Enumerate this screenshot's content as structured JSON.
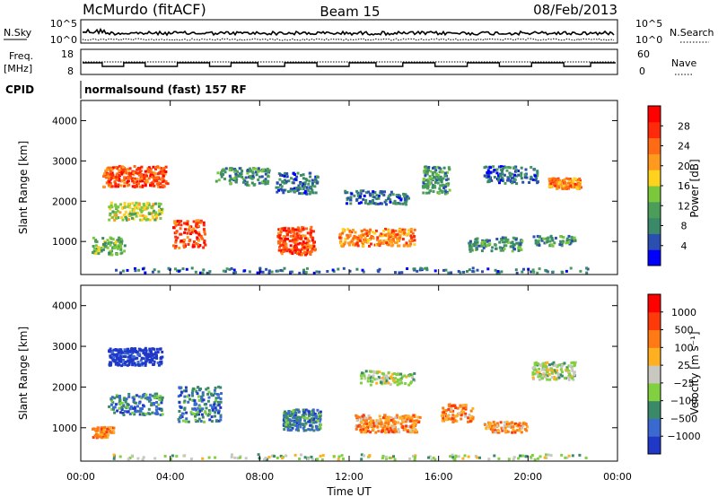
{
  "header": {
    "station": "McMurdo (fitACF)",
    "beam": "Beam 15",
    "date": "08/Feb/2013"
  },
  "noise_panel": {
    "left_label": "N.Sky",
    "right_label": "N.Search",
    "left_ticks": [
      "10^5",
      "10^0"
    ],
    "right_ticks": [
      "10^5",
      "10^0"
    ]
  },
  "freq_panel": {
    "left_label_line1": "Freq.",
    "left_label_line2": "[MHz]",
    "left_ticks": [
      "18",
      "8"
    ],
    "right_label": "Nave",
    "right_ticks": [
      "60",
      "0"
    ]
  },
  "cpid": {
    "label": "CPID",
    "value": "normalsound (fast) 157 RF"
  },
  "colors": {
    "power_scale": [
      "#0000ff",
      "#2b4fb0",
      "#3a8a6a",
      "#4a9e5a",
      "#7cc83c",
      "#ffd21e",
      "#ff9a1e",
      "#ff6a14",
      "#ff2a0a",
      "#ff0000"
    ],
    "velocity_scale": [
      "#2038c8",
      "#3a6ad0",
      "#3a8a6a",
      "#80d040",
      "#c8c8c0",
      "#ffb020",
      "#ff7a14",
      "#ff3a0a",
      "#ff0000"
    ]
  },
  "chart_data": [
    {
      "type": "heatmap",
      "name": "power",
      "ylabel": "Slant Range [km]",
      "yticks": [
        "1000",
        "2000",
        "3000",
        "4000"
      ],
      "ylim": [
        180,
        4500
      ],
      "xlim": [
        "00:00",
        "24:00"
      ],
      "colorbar_label": "Power [dB]",
      "colorbar_ticks": [
        "28",
        "24",
        "20",
        "16",
        "12",
        "8",
        "4"
      ],
      "clim": [
        0,
        32
      ]
    },
    {
      "type": "heatmap",
      "name": "velocity",
      "ylabel": "Slant Range [km]",
      "yticks": [
        "1000",
        "2000",
        "3000",
        "4000"
      ],
      "ylim": [
        180,
        4500
      ],
      "xlabel": "Time UT",
      "xticks": [
        "00:00",
        "04:00",
        "08:00",
        "12:00",
        "16:00",
        "20:00",
        "00:00"
      ],
      "colorbar_label": "Velocity [m s⁻¹]",
      "colorbar_ticks": [
        "1000",
        "500",
        "100",
        "25",
        "−25",
        "−100",
        "−500",
        "−1000"
      ]
    }
  ]
}
